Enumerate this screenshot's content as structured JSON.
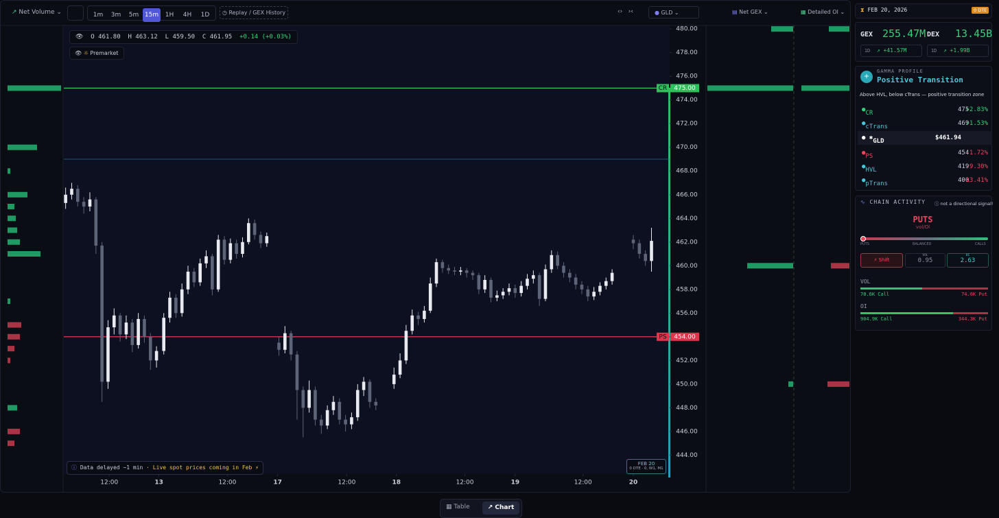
{
  "toolbar": {
    "indicator": "Net Volume",
    "timeframes": [
      "1m",
      "3m",
      "5m",
      "15m",
      "1H",
      "4H",
      "1D"
    ],
    "active_timeframe_index": 3,
    "replay": "Replay / GEX History",
    "symbol": "GLD",
    "gex_view": "Net GEX",
    "oi_view": "Detailed OI"
  },
  "ohlc_legend": {
    "o_label": "O",
    "open": "461.80",
    "h_label": "H",
    "high": "463.12",
    "l_label": "L",
    "low": "459.50",
    "c_label": "C",
    "close": "461.95",
    "change": "+0.14 (+0.03%)"
  },
  "session": "Premarket",
  "notice": {
    "text": "Data delayed ~1 min",
    "highlight": "· Live spot prices coming in Feb ⚡"
  },
  "expiry_badge": {
    "date": "FEB 20",
    "detail": "0 DTE · 0, W1, M1"
  },
  "tabs": [
    "Table",
    "Chart"
  ],
  "chart_data": {
    "type": "candlestick",
    "ylim": [
      442.4,
      480.3
    ],
    "xlim": [
      0,
      100
    ],
    "yticks": [
      {
        "value": 444,
        "label": "444.00"
      },
      {
        "value": 446,
        "label": "446.00"
      },
      {
        "value": 448,
        "label": "448.00"
      },
      {
        "value": 450,
        "label": "450.00"
      },
      {
        "value": 452,
        "label": "452.00"
      },
      {
        "value": 454,
        "label": "454.00"
      },
      {
        "value": 456,
        "label": "456.00"
      },
      {
        "value": 458,
        "label": "458.00"
      },
      {
        "value": 460,
        "label": "460.00"
      },
      {
        "value": 462,
        "label": "462.00"
      },
      {
        "value": 464,
        "label": "464.00"
      },
      {
        "value": 466,
        "label": "466.00"
      },
      {
        "value": 468,
        "label": "468.00"
      },
      {
        "value": 470,
        "label": "470.00"
      },
      {
        "value": 472,
        "label": "472.00"
      },
      {
        "value": 474,
        "label": "474.00"
      },
      {
        "value": 476,
        "label": "476.00"
      },
      {
        "value": 478,
        "label": "478.00"
      },
      {
        "value": 480,
        "label": "480.00"
      }
    ],
    "xticks": [
      {
        "value": 7.5,
        "label": "12:00"
      },
      {
        "value": 15.7,
        "label": "13"
      },
      {
        "value": 27,
        "label": "12:00"
      },
      {
        "value": 35.3,
        "label": "17"
      },
      {
        "value": 46.7,
        "label": "12:00"
      },
      {
        "value": 54.9,
        "label": "18"
      },
      {
        "value": 66.2,
        "label": "12:00"
      },
      {
        "value": 74.5,
        "label": "19"
      },
      {
        "value": 85.7,
        "label": "12:00"
      },
      {
        "value": 94,
        "label": "20"
      }
    ],
    "up_color": "#e8eaf0",
    "down_color": "#5d6478",
    "candles": {
      "x": [
        0.3,
        1.3,
        2.3,
        3.3,
        4.3,
        5.3,
        6.3,
        7.3,
        8.3,
        9.3,
        10.3,
        11.3,
        12.3,
        13.3,
        14.3,
        15.3,
        16.5,
        17.5,
        18.5,
        19.5,
        20.5,
        21.5,
        22.5,
        23.5,
        24.5,
        25.5,
        26.5,
        27.5,
        28.5,
        29.5,
        30.5,
        31.5,
        32.5,
        33.5,
        35.5,
        36.5,
        37.5,
        38.5,
        39.5,
        40.5,
        41.5,
        42.5,
        43.5,
        44.5,
        45.5,
        46.5,
        47.5,
        48.5,
        49.5,
        50.5,
        51.5,
        54.5,
        55.5,
        56.5,
        57.5,
        58.5,
        59.5,
        60.5,
        61.5,
        62.5,
        63.5,
        64.5,
        65.5,
        66.5,
        67.5,
        68.5,
        69.5,
        70.5,
        71.5,
        72.5,
        73.5,
        74.5,
        75.5,
        76.5,
        77.5,
        78.5,
        79.5,
        80.5,
        81.5,
        82.5,
        83.5,
        84.5,
        85.5,
        86.5,
        87.5,
        88.5,
        89.5,
        90.5,
        94,
        95,
        96,
        97
      ],
      "open": [
        465.3,
        466.0,
        466.5,
        465.4,
        465.0,
        465.6,
        461.7,
        450.2,
        454.8,
        455.8,
        454.2,
        455.2,
        453.3,
        455.5,
        454.0,
        452.0,
        452.8,
        455.6,
        457.3,
        456.0,
        458.0,
        459.5,
        458.6,
        460.2,
        460.8,
        458.0,
        462.2,
        460.5,
        461.9,
        461.0,
        462.0,
        463.6,
        462.6,
        461.9,
        453.5,
        452.9,
        454.3,
        452.5,
        449.5,
        448.0,
        449.5,
        447.0,
        446.5,
        447.8,
        448.5,
        447.0,
        446.6,
        447.2,
        449.5,
        450.2,
        448.5,
        450.0,
        450.8,
        452.0,
        454.5,
        455.8,
        455.5,
        456.2,
        458.5,
        460.3,
        459.8,
        459.6,
        459.5,
        459.6,
        459.4,
        459.2,
        458.0,
        458.8,
        457.3,
        457.5,
        457.8,
        458.1,
        457.7,
        458.3,
        458.9,
        459.2,
        457.2,
        459.7,
        460.9,
        460.0,
        459.4,
        459.0,
        458.4,
        458.0,
        457.4,
        457.8,
        458.3,
        458.7,
        462.2,
        461.9,
        461.0,
        460.4
      ],
      "high": [
        466.6,
        467.0,
        466.8,
        465.8,
        466.2,
        465.8,
        462.0,
        455.4,
        456.4,
        456.0,
        455.8,
        455.5,
        456.0,
        455.8,
        454.3,
        453.2,
        456.0,
        457.8,
        457.6,
        458.5,
        460.0,
        459.8,
        460.6,
        461.3,
        461.0,
        462.6,
        462.5,
        462.3,
        462.2,
        462.4,
        464.0,
        463.9,
        462.9,
        462.8,
        454.0,
        454.9,
        454.5,
        452.8,
        449.8,
        450.3,
        449.8,
        447.4,
        448.2,
        449.0,
        448.8,
        447.4,
        447.6,
        450.0,
        450.6,
        450.4,
        448.8,
        451.4,
        452.6,
        455.0,
        456.3,
        456.1,
        456.6,
        459.0,
        460.6,
        460.5,
        460.1,
        459.9,
        459.9,
        459.8,
        459.6,
        459.4,
        459.2,
        459.0,
        457.9,
        458.1,
        458.5,
        458.4,
        458.7,
        459.3,
        459.6,
        459.4,
        460.1,
        461.3,
        461.2,
        460.3,
        459.7,
        459.3,
        458.7,
        458.3,
        458.2,
        458.6,
        459.0,
        459.7,
        462.6,
        462.2,
        461.3,
        463.2
      ],
      "low": [
        464.8,
        465.6,
        465.0,
        464.4,
        464.6,
        461.0,
        448.5,
        449.6,
        454.2,
        453.6,
        453.8,
        452.7,
        453.0,
        453.5,
        451.2,
        451.4,
        452.5,
        455.2,
        455.6,
        455.7,
        457.6,
        458.2,
        458.3,
        459.8,
        457.5,
        457.8,
        460.1,
        460.2,
        460.6,
        460.7,
        461.8,
        462.2,
        461.5,
        461.6,
        452.4,
        452.6,
        452.0,
        447.0,
        445.5,
        447.6,
        446.5,
        445.8,
        446.2,
        447.4,
        446.6,
        446.0,
        446.2,
        446.9,
        449.0,
        448.0,
        447.8,
        449.6,
        450.5,
        451.7,
        454.2,
        455.0,
        455.2,
        456.0,
        458.2,
        459.4,
        459.3,
        459.2,
        459.2,
        459.0,
        458.8,
        457.6,
        457.7,
        456.9,
        457.0,
        457.2,
        457.5,
        457.3,
        457.4,
        458.0,
        458.5,
        456.6,
        457.0,
        459.4,
        459.7,
        459.0,
        458.6,
        458.0,
        457.6,
        457.0,
        457.1,
        457.5,
        458.0,
        458.4,
        461.4,
        460.6,
        460.0,
        459.5
      ],
      "close": [
        466.0,
        466.5,
        465.4,
        465.0,
        465.6,
        461.7,
        450.2,
        454.8,
        455.8,
        454.2,
        455.2,
        453.3,
        455.5,
        454.0,
        452.0,
        452.8,
        455.6,
        457.3,
        456.0,
        458.0,
        459.5,
        458.6,
        460.2,
        460.8,
        458.0,
        462.2,
        460.5,
        461.9,
        461.0,
        462.0,
        463.6,
        462.6,
        461.9,
        462.5,
        452.9,
        454.3,
        452.5,
        449.5,
        448.0,
        449.5,
        447.0,
        446.5,
        447.8,
        448.5,
        447.0,
        446.6,
        447.2,
        449.5,
        450.2,
        448.5,
        448.2,
        450.8,
        452.0,
        454.5,
        455.8,
        455.5,
        456.2,
        458.5,
        460.3,
        459.8,
        459.6,
        459.5,
        459.6,
        459.4,
        459.2,
        458.0,
        458.8,
        457.3,
        457.5,
        457.8,
        458.1,
        457.7,
        458.3,
        458.9,
        459.2,
        457.2,
        459.7,
        460.9,
        460.0,
        459.4,
        459.0,
        458.4,
        458.0,
        457.4,
        457.8,
        458.3,
        458.7,
        459.4,
        461.9,
        461.0,
        460.4,
        462.1
      ]
    },
    "levels": [
      {
        "name": "CR",
        "value": 475,
        "value_label": "475.00",
        "color": "#2fbf5b"
      },
      {
        "value": 469,
        "color": "#2a6a86"
      },
      {
        "name": "PS",
        "value": 454,
        "value_label": "454.00",
        "color": "#e0344a"
      }
    ],
    "pos_color": "#1f9a62",
    "neg_color": "#a83445",
    "net_volume": {
      "prices": [
        475,
        470,
        468,
        466,
        465,
        464,
        463,
        462,
        461,
        457,
        455,
        454,
        453,
        452,
        448,
        446,
        445
      ],
      "values": [
        78,
        43,
        4,
        29,
        10,
        12,
        14,
        18,
        48,
        4,
        -20,
        -18,
        -10,
        -4,
        14,
        -18,
        -10
      ]
    },
    "gex_profile": {
      "prices": [
        480,
        475,
        460,
        450
      ],
      "values": [
        32,
        125,
        67,
        7
      ]
    },
    "oi_profile": {
      "prices": [
        480,
        475,
        460,
        450
      ],
      "values": [
        30,
        70,
        -27,
        -32
      ]
    }
  },
  "panel": {
    "date": "FEB 20, 2026",
    "dte": "0 DTE",
    "gex": {
      "label": "GEX",
      "value": "255.47M",
      "period": "1D",
      "change": "+41.57M"
    },
    "dex": {
      "label": "DEX",
      "value": "13.45B",
      "period": "1D",
      "change": "+1.99B"
    },
    "profile": {
      "kicker": "GAMMA PROFILE",
      "title": "Positive Transition",
      "desc": "Above HVL, below cTrans — positive transition zone"
    },
    "levels": [
      {
        "name": "CR",
        "level": "475",
        "pct": "+2.83%"
      },
      {
        "name": "cTrans",
        "level": "469",
        "pct": "+1.53%"
      },
      {
        "name": "GLD",
        "level": "$461.94"
      },
      {
        "name": "PS",
        "level": "454",
        "pct": "-1.72%"
      },
      {
        "name": "HVL",
        "level": "419",
        "pct": "-9.30%"
      },
      {
        "name": "pTrans",
        "level": "400",
        "pct": "-13.41%"
      }
    ],
    "chain": {
      "title": "CHAIN ACTIVITY",
      "note": "not a directional signal!",
      "side": "PUTS",
      "metric": "vol/OI",
      "scale": [
        "PUTS",
        "BALANCED",
        "CALLS"
      ],
      "shift": "Shift",
      "vol_label": "VOL",
      "vol": "0.95",
      "oi_label": "OI",
      "oi": "2.63"
    },
    "vol": {
      "label": "VOL",
      "call": {
        "value": 70600,
        "label": "70.6K Call"
      },
      "put": {
        "value": 74600,
        "label": "74.6K Put"
      }
    },
    "oi": {
      "label": "OI",
      "call": {
        "value": 904900,
        "label": "904.9K Call"
      },
      "put": {
        "value": 344300,
        "label": "344.3K Put"
      }
    }
  }
}
